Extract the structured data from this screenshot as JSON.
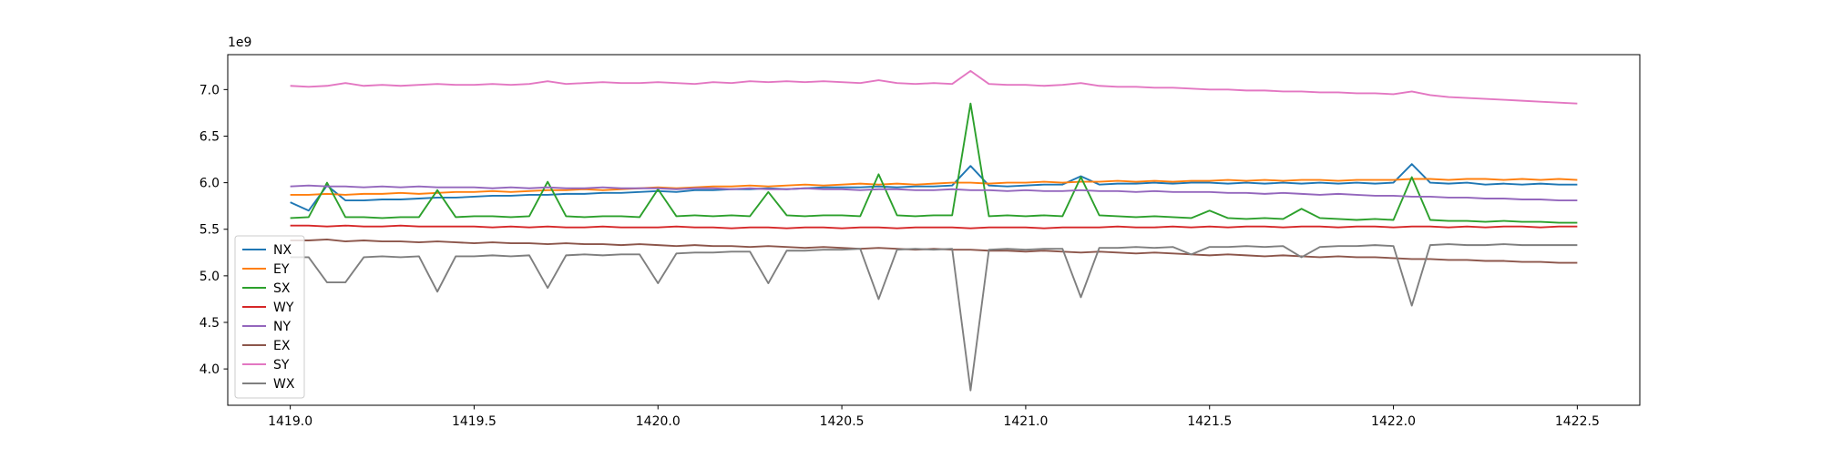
{
  "chart_data": {
    "type": "line",
    "y_offset_label": "1e9",
    "x": [
      1419.0,
      1419.05,
      1419.1,
      1419.15,
      1419.2,
      1419.25,
      1419.3,
      1419.35,
      1419.4,
      1419.45,
      1419.5,
      1419.55,
      1419.6,
      1419.65,
      1419.7,
      1419.75,
      1419.8,
      1419.85,
      1419.9,
      1419.95,
      1420.0,
      1420.05,
      1420.1,
      1420.15,
      1420.2,
      1420.25,
      1420.3,
      1420.35,
      1420.4,
      1420.45,
      1420.5,
      1420.55,
      1420.6,
      1420.65,
      1420.7,
      1420.75,
      1420.8,
      1420.85,
      1420.9,
      1420.95,
      1421.0,
      1421.05,
      1421.1,
      1421.15,
      1421.2,
      1421.25,
      1421.3,
      1421.35,
      1421.4,
      1421.45,
      1421.5,
      1421.55,
      1421.6,
      1421.65,
      1421.7,
      1421.75,
      1421.8,
      1421.85,
      1421.9,
      1421.95,
      1422.0,
      1422.05,
      1422.1,
      1422.15,
      1422.2,
      1422.25,
      1422.3,
      1422.35,
      1422.4,
      1422.45,
      1422.5
    ],
    "series": [
      {
        "name": "NX",
        "color": "#1f77b4",
        "values": [
          5.79,
          5.7,
          5.97,
          5.81,
          5.81,
          5.82,
          5.82,
          5.83,
          5.84,
          5.84,
          5.85,
          5.86,
          5.86,
          5.87,
          5.87,
          5.88,
          5.88,
          5.89,
          5.89,
          5.9,
          5.91,
          5.9,
          5.92,
          5.92,
          5.93,
          5.93,
          5.94,
          5.93,
          5.94,
          5.95,
          5.95,
          5.95,
          5.96,
          5.95,
          5.96,
          5.96,
          5.97,
          6.18,
          5.97,
          5.96,
          5.97,
          5.98,
          5.98,
          6.07,
          5.98,
          5.99,
          5.99,
          6.0,
          5.99,
          6.0,
          6.0,
          5.99,
          6.0,
          5.99,
          6.0,
          5.99,
          6.0,
          5.99,
          6.0,
          5.99,
          6.0,
          6.2,
          6.0,
          5.99,
          6.0,
          5.98,
          5.99,
          5.98,
          5.99,
          5.98,
          5.98
        ]
      },
      {
        "name": "EY",
        "color": "#ff7f0e",
        "values": [
          5.87,
          5.87,
          5.88,
          5.87,
          5.88,
          5.88,
          5.89,
          5.88,
          5.89,
          5.9,
          5.9,
          5.91,
          5.9,
          5.91,
          5.92,
          5.92,
          5.93,
          5.92,
          5.93,
          5.94,
          5.95,
          5.94,
          5.95,
          5.96,
          5.96,
          5.97,
          5.96,
          5.97,
          5.98,
          5.97,
          5.98,
          5.99,
          5.98,
          5.99,
          5.98,
          5.99,
          6.0,
          6.0,
          5.99,
          6.0,
          6.0,
          6.01,
          6.0,
          6.01,
          6.01,
          6.02,
          6.01,
          6.02,
          6.01,
          6.02,
          6.02,
          6.03,
          6.02,
          6.03,
          6.02,
          6.03,
          6.03,
          6.02,
          6.03,
          6.03,
          6.03,
          6.04,
          6.04,
          6.03,
          6.04,
          6.04,
          6.03,
          6.04,
          6.03,
          6.04,
          6.03
        ]
      },
      {
        "name": "SX",
        "color": "#2ca02c",
        "values": [
          5.62,
          5.63,
          6.0,
          5.63,
          5.63,
          5.62,
          5.63,
          5.63,
          5.92,
          5.63,
          5.64,
          5.64,
          5.63,
          5.64,
          6.01,
          5.64,
          5.63,
          5.64,
          5.64,
          5.63,
          5.93,
          5.64,
          5.65,
          5.64,
          5.65,
          5.64,
          5.9,
          5.65,
          5.64,
          5.65,
          5.65,
          5.64,
          6.09,
          5.65,
          5.64,
          5.65,
          5.65,
          6.85,
          5.64,
          5.65,
          5.64,
          5.65,
          5.64,
          6.06,
          5.65,
          5.64,
          5.63,
          5.64,
          5.63,
          5.62,
          5.7,
          5.62,
          5.61,
          5.62,
          5.61,
          5.72,
          5.62,
          5.61,
          5.6,
          5.61,
          5.6,
          6.06,
          5.6,
          5.59,
          5.59,
          5.58,
          5.59,
          5.58,
          5.58,
          5.57,
          5.57
        ]
      },
      {
        "name": "WY",
        "color": "#d62728",
        "values": [
          5.54,
          5.54,
          5.53,
          5.54,
          5.53,
          5.53,
          5.54,
          5.53,
          5.53,
          5.53,
          5.53,
          5.52,
          5.53,
          5.52,
          5.53,
          5.52,
          5.52,
          5.53,
          5.52,
          5.52,
          5.52,
          5.53,
          5.52,
          5.52,
          5.51,
          5.52,
          5.52,
          5.51,
          5.52,
          5.52,
          5.51,
          5.52,
          5.52,
          5.51,
          5.52,
          5.52,
          5.52,
          5.51,
          5.52,
          5.52,
          5.52,
          5.51,
          5.52,
          5.52,
          5.52,
          5.53,
          5.52,
          5.52,
          5.53,
          5.52,
          5.53,
          5.52,
          5.53,
          5.53,
          5.52,
          5.53,
          5.53,
          5.52,
          5.53,
          5.53,
          5.52,
          5.53,
          5.53,
          5.52,
          5.53,
          5.52,
          5.53,
          5.53,
          5.52,
          5.53,
          5.53
        ]
      },
      {
        "name": "NY",
        "color": "#9467bd",
        "values": [
          5.96,
          5.97,
          5.96,
          5.96,
          5.95,
          5.96,
          5.95,
          5.96,
          5.95,
          5.95,
          5.95,
          5.94,
          5.95,
          5.94,
          5.95,
          5.94,
          5.94,
          5.95,
          5.94,
          5.94,
          5.94,
          5.93,
          5.94,
          5.94,
          5.93,
          5.94,
          5.93,
          5.93,
          5.94,
          5.93,
          5.93,
          5.92,
          5.93,
          5.93,
          5.92,
          5.92,
          5.93,
          5.92,
          5.92,
          5.91,
          5.92,
          5.91,
          5.91,
          5.92,
          5.91,
          5.91,
          5.9,
          5.91,
          5.9,
          5.9,
          5.9,
          5.89,
          5.89,
          5.88,
          5.89,
          5.88,
          5.87,
          5.88,
          5.87,
          5.86,
          5.86,
          5.85,
          5.85,
          5.84,
          5.84,
          5.83,
          5.83,
          5.82,
          5.82,
          5.81,
          5.81
        ]
      },
      {
        "name": "EX",
        "color": "#8c564b",
        "values": [
          5.38,
          5.38,
          5.39,
          5.37,
          5.38,
          5.37,
          5.37,
          5.36,
          5.37,
          5.36,
          5.35,
          5.36,
          5.35,
          5.35,
          5.34,
          5.35,
          5.34,
          5.34,
          5.33,
          5.34,
          5.33,
          5.32,
          5.33,
          5.32,
          5.32,
          5.31,
          5.32,
          5.31,
          5.3,
          5.31,
          5.3,
          5.29,
          5.3,
          5.29,
          5.28,
          5.29,
          5.28,
          5.28,
          5.27,
          5.27,
          5.26,
          5.27,
          5.26,
          5.25,
          5.26,
          5.25,
          5.24,
          5.25,
          5.24,
          5.23,
          5.22,
          5.23,
          5.22,
          5.21,
          5.22,
          5.21,
          5.2,
          5.21,
          5.2,
          5.2,
          5.19,
          5.18,
          5.18,
          5.17,
          5.17,
          5.16,
          5.16,
          5.15,
          5.15,
          5.14,
          5.14
        ]
      },
      {
        "name": "SY",
        "color": "#e377c2",
        "values": [
          7.04,
          7.03,
          7.04,
          7.07,
          7.04,
          7.05,
          7.04,
          7.05,
          7.06,
          7.05,
          7.05,
          7.06,
          7.05,
          7.06,
          7.09,
          7.06,
          7.07,
          7.08,
          7.07,
          7.07,
          7.08,
          7.07,
          7.06,
          7.08,
          7.07,
          7.09,
          7.08,
          7.09,
          7.08,
          7.09,
          7.08,
          7.07,
          7.1,
          7.07,
          7.06,
          7.07,
          7.06,
          7.2,
          7.06,
          7.05,
          7.05,
          7.04,
          7.05,
          7.07,
          7.04,
          7.03,
          7.03,
          7.02,
          7.02,
          7.01,
          7.0,
          7.0,
          6.99,
          6.99,
          6.98,
          6.98,
          6.97,
          6.97,
          6.96,
          6.96,
          6.95,
          6.98,
          6.94,
          6.92,
          6.91,
          6.9,
          6.89,
          6.88,
          6.87,
          6.86,
          6.85
        ]
      },
      {
        "name": "WX",
        "color": "#7f7f7f",
        "values": [
          5.2,
          5.2,
          4.93,
          4.93,
          5.2,
          5.21,
          5.2,
          5.21,
          4.83,
          5.21,
          5.21,
          5.22,
          5.21,
          5.22,
          4.87,
          5.22,
          5.23,
          5.22,
          5.23,
          5.23,
          4.92,
          5.24,
          5.25,
          5.25,
          5.26,
          5.26,
          4.92,
          5.27,
          5.27,
          5.28,
          5.28,
          5.29,
          4.75,
          5.28,
          5.29,
          5.28,
          5.29,
          3.77,
          5.28,
          5.29,
          5.28,
          5.29,
          5.29,
          4.77,
          5.3,
          5.3,
          5.31,
          5.3,
          5.31,
          5.23,
          5.31,
          5.31,
          5.32,
          5.31,
          5.32,
          5.2,
          5.31,
          5.32,
          5.32,
          5.33,
          5.32,
          4.68,
          5.33,
          5.34,
          5.33,
          5.33,
          5.34,
          5.33,
          5.33,
          5.33,
          5.33
        ]
      }
    ],
    "xlim": [
      1418.83,
      1422.67
    ],
    "ylim": [
      3.61,
      7.375
    ],
    "xticks": [
      {
        "value": 1419,
        "label": "1419.0"
      },
      1419.5,
      {
        "value": 1420,
        "label": "1420.0"
      },
      1420.5,
      {
        "value": 1421,
        "label": "1421.0"
      },
      1421.5,
      {
        "value": 1422,
        "label": "1422.0"
      },
      1422.5
    ],
    "yticks": [
      {
        "value": 4,
        "label": "4.0"
      },
      4.5,
      {
        "value": 5,
        "label": "5.0"
      },
      5.5,
      {
        "value": 6,
        "label": "6.0"
      },
      6.5,
      {
        "value": 7,
        "label": "7.0"
      }
    ],
    "legend": "lower left",
    "grid": false
  }
}
